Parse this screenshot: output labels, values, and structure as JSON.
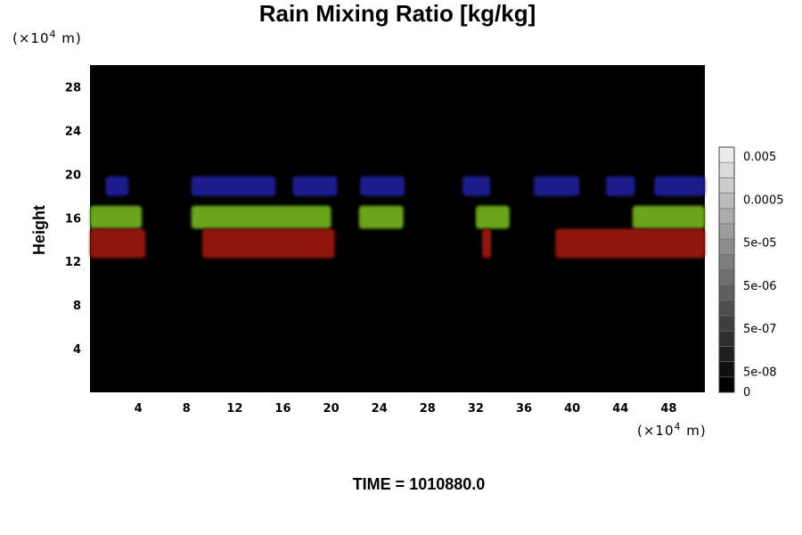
{
  "chart_data": {
    "type": "heatmap",
    "title": "Rain Mixing Ratio [kg/kg]",
    "ylabel": "Height",
    "x_unit_base": "(×10",
    "x_unit_exp": "4",
    "x_unit_tail": " m)",
    "y_unit_base": "(×10",
    "y_unit_exp": "4",
    "y_unit_tail": " m)",
    "time_label": "TIME = 1010880.0",
    "xlim": [
      0,
      51
    ],
    "ylim": [
      0,
      30
    ],
    "x_ticks": [
      4,
      8,
      12,
      16,
      20,
      24,
      28,
      32,
      36,
      40,
      44,
      48
    ],
    "y_ticks": [
      4,
      8,
      12,
      16,
      20,
      24,
      28
    ],
    "background_color": "#000000",
    "colorbar": {
      "labels": [
        "0.005",
        "0.0005",
        "5e-05",
        "5e-06",
        "5e-07",
        "5e-08",
        "0"
      ],
      "levels": 16
    },
    "bands": [
      {
        "name_color": "blue",
        "color": "#1c1f8c",
        "y_range": [
          18.0,
          19.8
        ],
        "x_segments": [
          [
            1.3,
            3.2
          ],
          [
            8.4,
            15.4
          ],
          [
            16.8,
            20.5
          ],
          [
            22.4,
            26.1
          ],
          [
            30.9,
            33.2
          ],
          [
            36.8,
            40.6
          ],
          [
            42.8,
            45.2
          ],
          [
            46.8,
            51.0
          ]
        ]
      },
      {
        "name_color": "green",
        "color": "#6aa51a",
        "y_range": [
          15.0,
          17.1
        ],
        "x_segments": [
          [
            0.0,
            4.3
          ],
          [
            8.4,
            20.0
          ],
          [
            22.3,
            26.0
          ],
          [
            32.0,
            34.8
          ],
          [
            45.0,
            51.0
          ]
        ]
      },
      {
        "name_color": "red",
        "color": "#8e1410",
        "y_range": [
          12.3,
          15.0
        ],
        "x_segments": [
          [
            0.0,
            4.6
          ],
          [
            9.3,
            20.3
          ],
          [
            32.5,
            33.3
          ],
          [
            38.6,
            51.0
          ]
        ]
      }
    ]
  }
}
